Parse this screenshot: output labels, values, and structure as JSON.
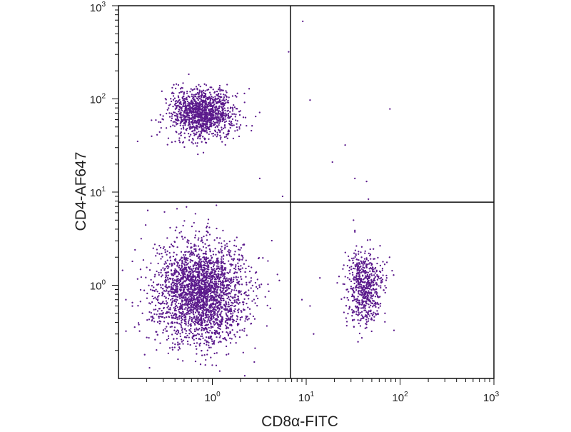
{
  "chart_data": {
    "type": "scatter",
    "title": "",
    "xlabel": "CD8α-FITC",
    "ylabel": "CD4-AF647",
    "x_scale": "log",
    "y_scale": "log",
    "xlim": [
      0.1,
      1000
    ],
    "ylim": [
      0.1,
      1000
    ],
    "x_ticks": [
      {
        "value": 1,
        "base": "10",
        "exp": "0"
      },
      {
        "value": 10,
        "base": "10",
        "exp": "1"
      },
      {
        "value": 100,
        "base": "10",
        "exp": "2"
      },
      {
        "value": 1000,
        "base": "10",
        "exp": "3"
      }
    ],
    "y_ticks": [
      {
        "value": 1,
        "base": "10",
        "exp": "0"
      },
      {
        "value": 10,
        "base": "10",
        "exp": "1"
      },
      {
        "value": 100,
        "base": "10",
        "exp": "2"
      },
      {
        "value": 1000,
        "base": "10",
        "exp": "3"
      }
    ],
    "gates": {
      "x": 6.8,
      "y": 7.8
    },
    "grid": false,
    "point_color": "#5b1a8c",
    "populations": [
      {
        "center_x": 0.75,
        "center_y": 0.85,
        "spread_x": 0.24,
        "spread_y": 0.27,
        "count": 2600
      },
      {
        "center_x": 0.78,
        "center_y": 70,
        "spread_x": 0.17,
        "spread_y": 0.13,
        "count": 1300
      },
      {
        "center_x": 42,
        "center_y": 0.95,
        "spread_x": 0.1,
        "spread_y": 0.2,
        "count": 620
      }
    ],
    "points": [
      {
        "x": 9.2,
        "y": 680
      },
      {
        "x": 11,
        "y": 97
      },
      {
        "x": 78,
        "y": 78
      },
      {
        "x": 26,
        "y": 32
      },
      {
        "x": 19,
        "y": 21
      },
      {
        "x": 33,
        "y": 14
      },
      {
        "x": 44,
        "y": 13
      },
      {
        "x": 46,
        "y": 8.4
      },
      {
        "x": 6.5,
        "y": 320
      },
      {
        "x": 3.2,
        "y": 14
      },
      {
        "x": 5.6,
        "y": 9
      },
      {
        "x": 0.15,
        "y": 2.4
      },
      {
        "x": 0.18,
        "y": 0.5
      },
      {
        "x": 0.12,
        "y": 0.7
      },
      {
        "x": 0.19,
        "y": 0.18
      },
      {
        "x": 0.16,
        "y": 35
      },
      {
        "x": 0.3,
        "y": 60
      },
      {
        "x": 12,
        "y": 0.3
      },
      {
        "x": 9,
        "y": 0.7
      },
      {
        "x": 14,
        "y": 1.2
      },
      {
        "x": 11,
        "y": 0.6
      },
      {
        "x": 2.8,
        "y": 0.15
      },
      {
        "x": 1.2,
        "y": 0.12
      }
    ]
  }
}
